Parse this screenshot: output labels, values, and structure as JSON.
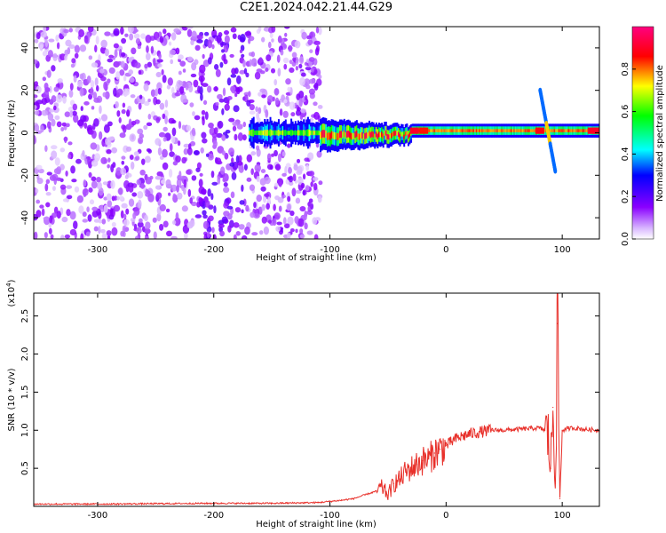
{
  "title": "C2E1.2024.042.21.44.G29",
  "chart_data": [
    {
      "type": "heatmap",
      "xlabel": "Height of straight line (km)",
      "ylabel": "Frequency (Hz)",
      "xlim": [
        -355,
        132
      ],
      "ylim": [
        -50,
        50
      ],
      "xticks": [
        -300,
        -200,
        -100,
        0,
        100
      ],
      "xtick_labels": [
        "-300",
        "-200",
        "-100",
        "0",
        "100"
      ],
      "yticks": [
        -40,
        -20,
        0,
        20,
        40
      ],
      "ytick_labels": [
        "-40",
        "-20",
        "0",
        "20",
        "40"
      ],
      "colorbar": {
        "label": "Normalized spectral amplitude",
        "range": [
          0,
          1
        ],
        "ticks": [
          0.0,
          0.2,
          0.4,
          0.6,
          0.8
        ],
        "tick_labels": [
          "0.0",
          "0.2",
          "0.4",
          "0.6",
          "0.8"
        ],
        "colors": [
          "#ffffff",
          "#8a00ff",
          "#0000ff",
          "#00ffff",
          "#00ff00",
          "#ffff00",
          "#ff0000",
          "#ff007f"
        ]
      },
      "regions": [
        {
          "x": [
            -355,
            -110
          ],
          "description_level": 0.12,
          "spread_hz": [
            -50,
            50
          ]
        },
        {
          "x": [
            -110,
            -30
          ],
          "center_hz": 0,
          "spread_hz": [
            -8,
            8
          ],
          "level": 0.55
        },
        {
          "x": [
            -30,
            80
          ],
          "center_hz": 1,
          "spread_hz": [
            -2.5,
            2.5
          ],
          "level": 0.55
        },
        {
          "x": [
            80,
            132
          ],
          "center_hz": 1,
          "spread_hz": [
            -2.5,
            2.5
          ],
          "level": 0.7
        }
      ],
      "grid": false
    },
    {
      "type": "line",
      "xlabel": "Height of straight line (km)",
      "ylabel": "SNR (10 * v/v)",
      "yscale_label": "(x10",
      "yscale_exp": "4",
      "xlim": [
        -355,
        132
      ],
      "ylim": [
        0,
        2.8
      ],
      "xticks": [
        -300,
        -200,
        -100,
        0,
        100
      ],
      "xtick_labels": [
        "-300",
        "-200",
        "-100",
        "0",
        "100"
      ],
      "yticks": [
        0.5,
        1.0,
        1.5,
        2.0,
        2.5
      ],
      "ytick_labels": [
        "0.5",
        "1.0",
        "1.5",
        "2.0",
        "2.5"
      ],
      "series": [
        {
          "color": "#e8302a",
          "x": [
            -355,
            -300,
            -250,
            -200,
            -150,
            -110,
            -90,
            -80,
            -70,
            -60,
            -55,
            -50,
            -45,
            -40,
            -35,
            -30,
            -25,
            -20,
            -15,
            -10,
            -5,
            0,
            5,
            10,
            20,
            30,
            40,
            50,
            60,
            70,
            80,
            85,
            88,
            90,
            92,
            94,
            96,
            98,
            100,
            105,
            110,
            120,
            132
          ],
          "y": [
            0.03,
            0.03,
            0.035,
            0.04,
            0.04,
            0.05,
            0.08,
            0.1,
            0.15,
            0.2,
            0.25,
            0.15,
            0.3,
            0.35,
            0.45,
            0.5,
            0.55,
            0.6,
            0.62,
            0.7,
            0.75,
            0.8,
            0.85,
            0.9,
            0.95,
            0.98,
            1.0,
            1.0,
            1.01,
            1.02,
            1.03,
            1.0,
            0.9,
            0.5,
            1.3,
            0.3,
            2.4,
            0.1,
            1.0,
            1.02,
            1.03,
            1.01,
            1.0
          ]
        }
      ],
      "grid": false
    }
  ]
}
